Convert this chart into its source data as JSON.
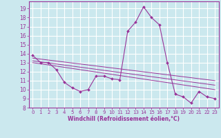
{
  "xlabel": "Windchill (Refroidissement éolien,°C)",
  "ylabel": "",
  "background_color": "#cbe8ee",
  "grid_color": "#ffffff",
  "line_color": "#993399",
  "xlim": [
    -0.5,
    23.5
  ],
  "ylim": [
    8,
    19.8
  ],
  "yticks": [
    8,
    9,
    10,
    11,
    12,
    13,
    14,
    15,
    16,
    17,
    18,
    19
  ],
  "xticks": [
    0,
    1,
    2,
    3,
    4,
    5,
    6,
    7,
    8,
    9,
    10,
    11,
    12,
    13,
    14,
    15,
    16,
    17,
    18,
    19,
    20,
    21,
    22,
    23
  ],
  "main_x": [
    0,
    1,
    2,
    3,
    4,
    5,
    6,
    7,
    8,
    9,
    10,
    11,
    12,
    13,
    14,
    15,
    16,
    17,
    18,
    19,
    20,
    21,
    22,
    23
  ],
  "main_y": [
    13.8,
    13.0,
    13.0,
    12.2,
    10.8,
    10.2,
    9.8,
    10.0,
    11.5,
    11.5,
    11.2,
    11.1,
    16.5,
    17.5,
    19.2,
    18.0,
    17.2,
    13.0,
    9.5,
    9.2,
    8.5,
    9.8,
    9.2,
    9.0
  ],
  "line2_x": [
    0,
    23
  ],
  "line2_y": [
    13.5,
    11.0
  ],
  "line3_x": [
    0,
    23
  ],
  "line3_y": [
    13.2,
    10.5
  ],
  "line4_x": [
    0,
    23
  ],
  "line4_y": [
    13.0,
    10.0
  ]
}
